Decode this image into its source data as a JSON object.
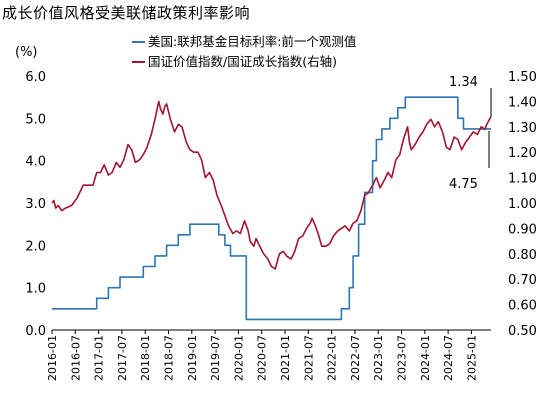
{
  "title": "成长价值风格受美联储政策利率影响",
  "unit_label": "(%)",
  "chart_data": {
    "type": "line",
    "y_left_ticks": [
      "0.0",
      "1.0",
      "2.0",
      "3.0",
      "4.0",
      "5.0",
      "6.0"
    ],
    "y_left_range": [
      0,
      6
    ],
    "y_right_ticks": [
      "0.50",
      "0.60",
      "0.70",
      "0.80",
      "0.90",
      "1.00",
      "1.10",
      "1.20",
      "1.30",
      "1.40",
      "1.50"
    ],
    "y_right_range": [
      0.5,
      1.5
    ],
    "x_range": [
      2016.0,
      2025.42
    ],
    "x_ticks": [
      {
        "x": 2016.0,
        "label": "2016-01"
      },
      {
        "x": 2016.5,
        "label": "2016-07"
      },
      {
        "x": 2017.0,
        "label": "2017-01"
      },
      {
        "x": 2017.5,
        "label": "2017-07"
      },
      {
        "x": 2018.0,
        "label": "2018-01"
      },
      {
        "x": 2018.5,
        "label": "2018-07"
      },
      {
        "x": 2019.0,
        "label": "2019-01"
      },
      {
        "x": 2019.5,
        "label": "2019-07"
      },
      {
        "x": 2020.0,
        "label": "2020-01"
      },
      {
        "x": 2020.5,
        "label": "2020-07"
      },
      {
        "x": 2021.0,
        "label": "2021-01"
      },
      {
        "x": 2021.5,
        "label": "2021-07"
      },
      {
        "x": 2022.0,
        "label": "2022-01"
      },
      {
        "x": 2022.5,
        "label": "2022-07"
      },
      {
        "x": 2023.0,
        "label": "2023-01"
      },
      {
        "x": 2023.5,
        "label": "2023-07"
      },
      {
        "x": 2024.0,
        "label": "2024-01"
      },
      {
        "x": 2024.5,
        "label": "2024-07"
      },
      {
        "x": 2025.0,
        "label": "2025-01"
      }
    ],
    "series": [
      {
        "name": "美国:联邦基金目标利率:前一个观测值",
        "axis": "left",
        "color": "#2e75b6",
        "step": true,
        "points": [
          [
            2016.0,
            0.5
          ],
          [
            2016.96,
            0.75
          ],
          [
            2017.21,
            1.0
          ],
          [
            2017.46,
            1.25
          ],
          [
            2017.96,
            1.5
          ],
          [
            2018.21,
            1.75
          ],
          [
            2018.46,
            2.0
          ],
          [
            2018.71,
            2.25
          ],
          [
            2018.96,
            2.5
          ],
          [
            2019.58,
            2.25
          ],
          [
            2019.71,
            2.0
          ],
          [
            2019.83,
            1.75
          ],
          [
            2020.17,
            0.25
          ],
          [
            2022.21,
            0.5
          ],
          [
            2022.38,
            1.0
          ],
          [
            2022.46,
            1.75
          ],
          [
            2022.58,
            2.5
          ],
          [
            2022.71,
            3.25
          ],
          [
            2022.88,
            4.0
          ],
          [
            2022.96,
            4.5
          ],
          [
            2023.08,
            4.75
          ],
          [
            2023.25,
            5.0
          ],
          [
            2023.42,
            5.25
          ],
          [
            2023.58,
            5.5
          ],
          [
            2024.71,
            5.0
          ],
          [
            2024.83,
            4.75
          ],
          [
            2024.96,
            4.75
          ],
          [
            2025.42,
            4.75
          ]
        ]
      },
      {
        "name": "国证价值指数/国证成长指数(右轴)",
        "axis": "right",
        "color": "#a2142f",
        "step": false,
        "points": [
          [
            2016.0,
            1.0
          ],
          [
            2016.04,
            1.01
          ],
          [
            2016.08,
            0.98
          ],
          [
            2016.13,
            0.99
          ],
          [
            2016.21,
            0.97
          ],
          [
            2016.29,
            0.98
          ],
          [
            2016.42,
            0.99
          ],
          [
            2016.54,
            1.02
          ],
          [
            2016.67,
            1.07
          ],
          [
            2016.75,
            1.07
          ],
          [
            2016.88,
            1.07
          ],
          [
            2016.96,
            1.12
          ],
          [
            2017.04,
            1.12
          ],
          [
            2017.12,
            1.15
          ],
          [
            2017.21,
            1.11
          ],
          [
            2017.29,
            1.12
          ],
          [
            2017.38,
            1.16
          ],
          [
            2017.46,
            1.14
          ],
          [
            2017.54,
            1.17
          ],
          [
            2017.63,
            1.23
          ],
          [
            2017.71,
            1.21
          ],
          [
            2017.79,
            1.16
          ],
          [
            2017.88,
            1.17
          ],
          [
            2017.96,
            1.19
          ],
          [
            2018.04,
            1.22
          ],
          [
            2018.13,
            1.27
          ],
          [
            2018.21,
            1.33
          ],
          [
            2018.29,
            1.4
          ],
          [
            2018.33,
            1.37
          ],
          [
            2018.38,
            1.35
          ],
          [
            2018.42,
            1.38
          ],
          [
            2018.46,
            1.39
          ],
          [
            2018.54,
            1.33
          ],
          [
            2018.63,
            1.28
          ],
          [
            2018.71,
            1.31
          ],
          [
            2018.79,
            1.3
          ],
          [
            2018.88,
            1.24
          ],
          [
            2018.96,
            1.21
          ],
          [
            2019.04,
            1.2
          ],
          [
            2019.13,
            1.2
          ],
          [
            2019.21,
            1.17
          ],
          [
            2019.29,
            1.1
          ],
          [
            2019.38,
            1.12
          ],
          [
            2019.46,
            1.09
          ],
          [
            2019.54,
            1.03
          ],
          [
            2019.63,
            0.99
          ],
          [
            2019.71,
            0.95
          ],
          [
            2019.79,
            0.91
          ],
          [
            2019.88,
            0.88
          ],
          [
            2019.96,
            0.89
          ],
          [
            2020.04,
            0.88
          ],
          [
            2020.13,
            0.93
          ],
          [
            2020.21,
            0.89
          ],
          [
            2020.25,
            0.85
          ],
          [
            2020.33,
            0.83
          ],
          [
            2020.38,
            0.86
          ],
          [
            2020.46,
            0.83
          ],
          [
            2020.54,
            0.8
          ],
          [
            2020.63,
            0.78
          ],
          [
            2020.71,
            0.75
          ],
          [
            2020.79,
            0.74
          ],
          [
            2020.88,
            0.8
          ],
          [
            2020.96,
            0.81
          ],
          [
            2021.04,
            0.79
          ],
          [
            2021.13,
            0.78
          ],
          [
            2021.21,
            0.81
          ],
          [
            2021.29,
            0.86
          ],
          [
            2021.38,
            0.87
          ],
          [
            2021.46,
            0.9
          ],
          [
            2021.54,
            0.92
          ],
          [
            2021.58,
            0.94
          ],
          [
            2021.63,
            0.92
          ],
          [
            2021.71,
            0.88
          ],
          [
            2021.79,
            0.83
          ],
          [
            2021.88,
            0.83
          ],
          [
            2021.96,
            0.84
          ],
          [
            2022.04,
            0.87
          ],
          [
            2022.13,
            0.89
          ],
          [
            2022.21,
            0.9
          ],
          [
            2022.29,
            0.91
          ],
          [
            2022.38,
            0.89
          ],
          [
            2022.46,
            0.92
          ],
          [
            2022.54,
            0.93
          ],
          [
            2022.63,
            0.97
          ],
          [
            2022.71,
            1.03
          ],
          [
            2022.79,
            1.04
          ],
          [
            2022.88,
            1.07
          ],
          [
            2022.96,
            1.1
          ],
          [
            2023.04,
            1.06
          ],
          [
            2023.13,
            1.09
          ],
          [
            2023.21,
            1.12
          ],
          [
            2023.29,
            1.1
          ],
          [
            2023.38,
            1.17
          ],
          [
            2023.46,
            1.19
          ],
          [
            2023.54,
            1.25
          ],
          [
            2023.63,
            1.3
          ],
          [
            2023.67,
            1.24
          ],
          [
            2023.71,
            1.21
          ],
          [
            2023.79,
            1.23
          ],
          [
            2023.88,
            1.26
          ],
          [
            2023.96,
            1.28
          ],
          [
            2024.04,
            1.31
          ],
          [
            2024.13,
            1.33
          ],
          [
            2024.21,
            1.3
          ],
          [
            2024.29,
            1.32
          ],
          [
            2024.38,
            1.28
          ],
          [
            2024.46,
            1.22
          ],
          [
            2024.54,
            1.21
          ],
          [
            2024.63,
            1.26
          ],
          [
            2024.71,
            1.25
          ],
          [
            2024.79,
            1.21
          ],
          [
            2024.88,
            1.24
          ],
          [
            2024.96,
            1.26
          ],
          [
            2025.04,
            1.28
          ],
          [
            2025.13,
            1.27
          ],
          [
            2025.21,
            1.3
          ],
          [
            2025.29,
            1.29
          ],
          [
            2025.33,
            1.31
          ],
          [
            2025.42,
            1.34
          ]
        ]
      }
    ],
    "annotations": [
      "1.34",
      "4.75"
    ]
  }
}
